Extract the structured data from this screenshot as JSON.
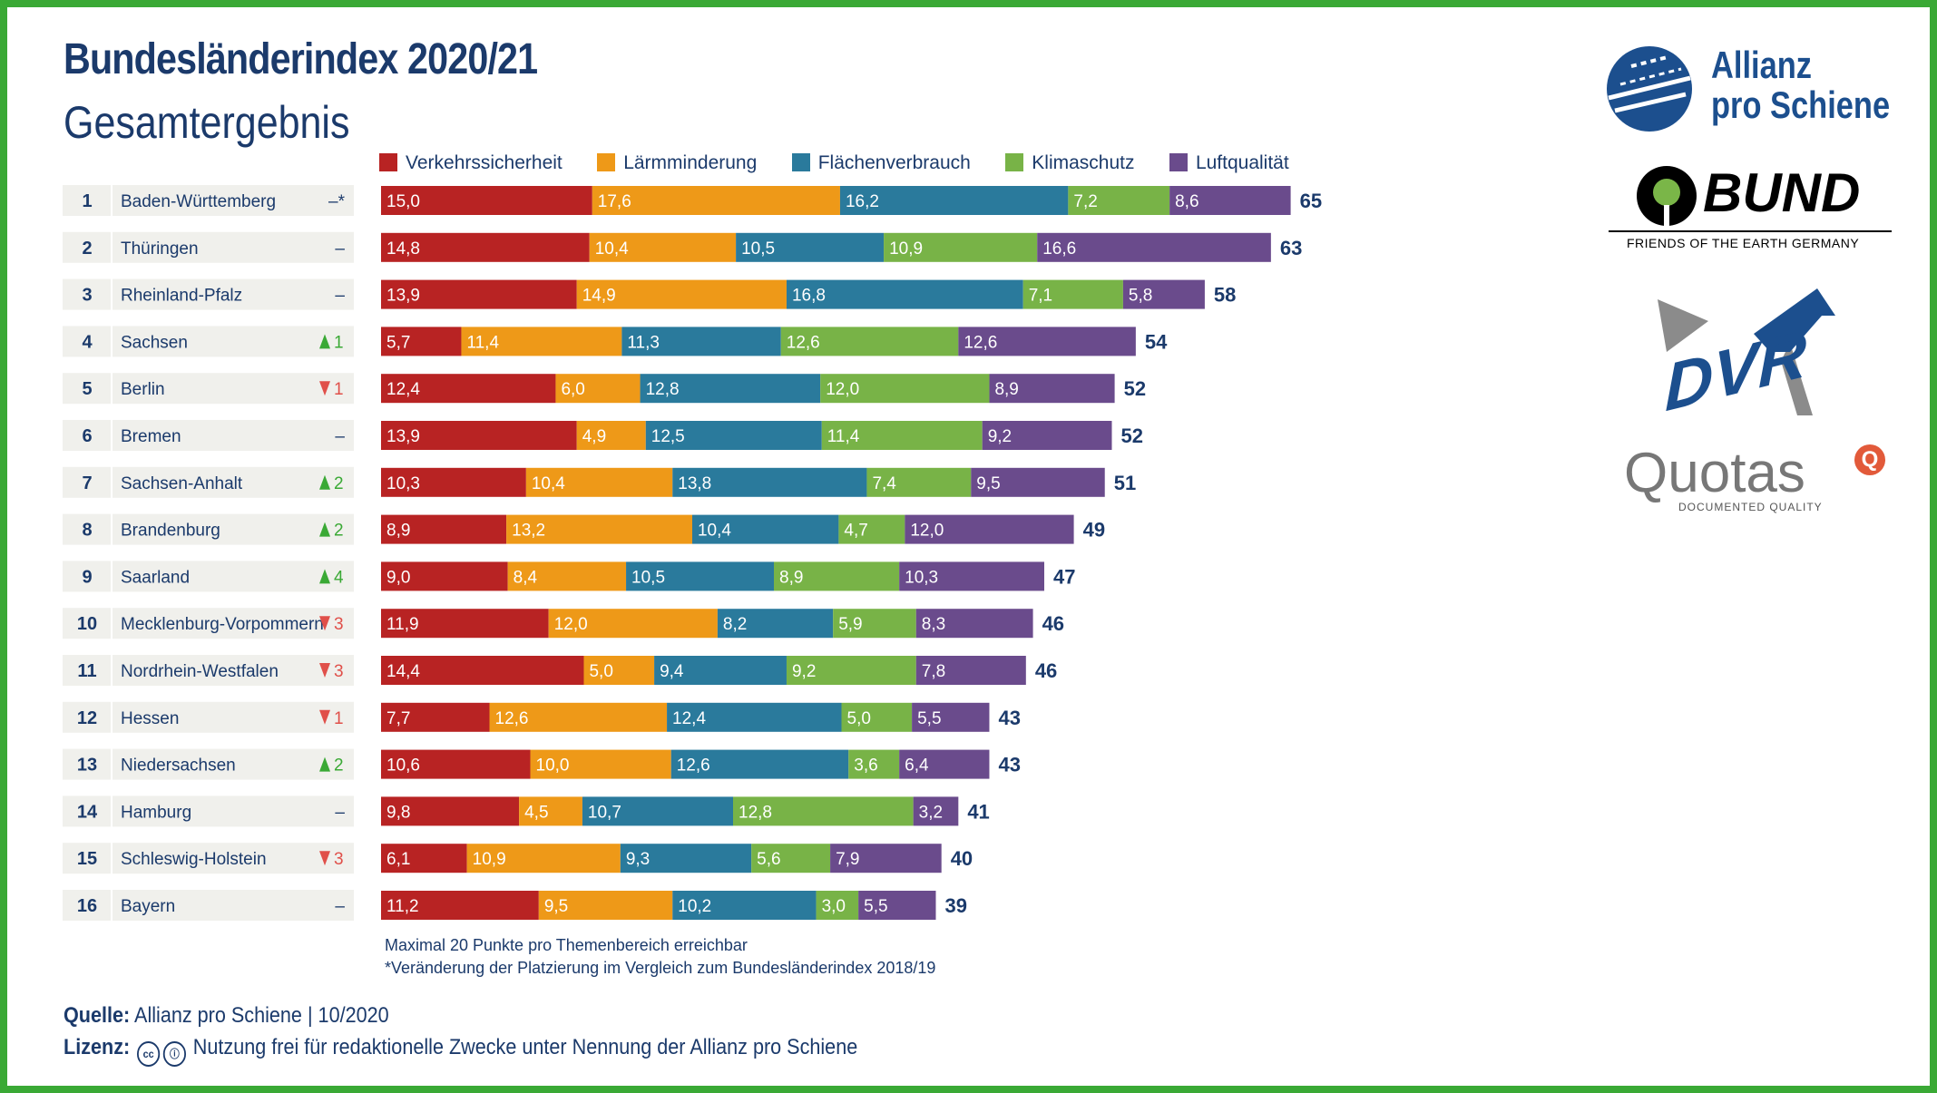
{
  "header": {
    "title": "Bundesländerindex 2020/21",
    "subtitle": "Gesamtergebnis"
  },
  "colors": {
    "verkehrssicherheit": "#b82323",
    "laerm": "#ee9918",
    "flaeche": "#2a7a9c",
    "klima": "#78b347",
    "luft": "#6a4b8c",
    "navy": "#1b3a6b",
    "up": "#3aa935",
    "down": "#e0504a",
    "frame": "#3aa935"
  },
  "chart_data": {
    "type": "bar",
    "stacked": true,
    "orientation": "horizontal",
    "xlim": [
      0,
      100
    ],
    "series_names": [
      "Verkehrssicherheit",
      "Lärmminderung",
      "Flächenverbrauch",
      "Klimaschutz",
      "Luftqualität"
    ],
    "rows": [
      {
        "rank": "1",
        "state": "Baden-Württemberg",
        "change": "–*",
        "dir": "none",
        "values": [
          15.0,
          17.6,
          16.2,
          7.2,
          8.6
        ],
        "labels": [
          "15,0",
          "17,6",
          "16,2",
          "7,2",
          "8,6"
        ],
        "total": "65"
      },
      {
        "rank": "2",
        "state": "Thüringen",
        "change": "–",
        "dir": "none",
        "values": [
          14.8,
          10.4,
          10.5,
          10.9,
          16.6
        ],
        "labels": [
          "14,8",
          "10,4",
          "10,5",
          "10,9",
          "16,6"
        ],
        "total": "63"
      },
      {
        "rank": "3",
        "state": "Rheinland-Pfalz",
        "change": "–",
        "dir": "none",
        "values": [
          13.9,
          14.9,
          16.8,
          7.1,
          5.8
        ],
        "labels": [
          "13,9",
          "14,9",
          "16,8",
          "7,1",
          "5,8"
        ],
        "total": "58"
      },
      {
        "rank": "4",
        "state": "Sachsen",
        "change": "1",
        "dir": "up",
        "values": [
          5.7,
          11.4,
          11.3,
          12.6,
          12.6
        ],
        "labels": [
          "5,7",
          "11,4",
          "11,3",
          "12,6",
          "12,6"
        ],
        "total": "54"
      },
      {
        "rank": "5",
        "state": "Berlin",
        "change": "1",
        "dir": "down",
        "values": [
          12.4,
          6.0,
          12.8,
          12.0,
          8.9
        ],
        "labels": [
          "12,4",
          "6,0",
          "12,8",
          "12,0",
          "8,9"
        ],
        "total": "52"
      },
      {
        "rank": "6",
        "state": "Bremen",
        "change": "–",
        "dir": "none",
        "values": [
          13.9,
          4.9,
          12.5,
          11.4,
          9.2
        ],
        "labels": [
          "13,9",
          "4,9",
          "12,5",
          "11,4",
          "9,2"
        ],
        "total": "52"
      },
      {
        "rank": "7",
        "state": "Sachsen-Anhalt",
        "change": "2",
        "dir": "up",
        "values": [
          10.3,
          10.4,
          13.8,
          7.4,
          9.5
        ],
        "labels": [
          "10,3",
          "10,4",
          "13,8",
          "7,4",
          "9,5"
        ],
        "total": "51"
      },
      {
        "rank": "8",
        "state": "Brandenburg",
        "change": "2",
        "dir": "up",
        "values": [
          8.9,
          13.2,
          10.4,
          4.7,
          12.0
        ],
        "labels": [
          "8,9",
          "13,2",
          "10,4",
          "4,7",
          "12,0"
        ],
        "total": "49"
      },
      {
        "rank": "9",
        "state": "Saarland",
        "change": "4",
        "dir": "up",
        "values": [
          9.0,
          8.4,
          10.5,
          8.9,
          10.3
        ],
        "labels": [
          "9,0",
          "8,4",
          "10,5",
          "8,9",
          "10,3"
        ],
        "total": "47"
      },
      {
        "rank": "10",
        "state": "Mecklenburg-Vorpommern",
        "change": "3",
        "dir": "down",
        "values": [
          11.9,
          12.0,
          8.2,
          5.9,
          8.3
        ],
        "labels": [
          "11,9",
          "12,0",
          "8,2",
          "5,9",
          "8,3"
        ],
        "total": "46"
      },
      {
        "rank": "11",
        "state": "Nordrhein-Westfalen",
        "change": "3",
        "dir": "down",
        "values": [
          14.4,
          5.0,
          9.4,
          9.2,
          7.8
        ],
        "labels": [
          "14,4",
          "5,0",
          "9,4",
          "9,2",
          "7,8"
        ],
        "total": "46"
      },
      {
        "rank": "12",
        "state": "Hessen",
        "change": "1",
        "dir": "down",
        "values": [
          7.7,
          12.6,
          12.4,
          5.0,
          5.5
        ],
        "labels": [
          "7,7",
          "12,6",
          "12,4",
          "5,0",
          "5,5"
        ],
        "total": "43"
      },
      {
        "rank": "13",
        "state": "Niedersachsen",
        "change": "2",
        "dir": "up",
        "values": [
          10.6,
          10.0,
          12.6,
          3.6,
          6.4
        ],
        "labels": [
          "10,6",
          "10,0",
          "12,6",
          "3,6",
          "6,4"
        ],
        "total": "43"
      },
      {
        "rank": "14",
        "state": "Hamburg",
        "change": "–",
        "dir": "none",
        "values": [
          9.8,
          4.5,
          10.7,
          12.8,
          3.2
        ],
        "labels": [
          "9,8",
          "4,5",
          "10,7",
          "12,8",
          "3,2"
        ],
        "total": "41"
      },
      {
        "rank": "15",
        "state": "Schleswig-Holstein",
        "change": "3",
        "dir": "down",
        "values": [
          6.1,
          10.9,
          9.3,
          5.6,
          7.9
        ],
        "labels": [
          "6,1",
          "10,9",
          "9,3",
          "5,6",
          "7,9"
        ],
        "total": "40"
      },
      {
        "rank": "16",
        "state": "Bayern",
        "change": "–",
        "dir": "none",
        "values": [
          11.2,
          9.5,
          10.2,
          3.0,
          5.5
        ],
        "labels": [
          "11,2",
          "9,5",
          "10,2",
          "3,0",
          "5,5"
        ],
        "total": "39"
      }
    ]
  },
  "notes": {
    "max_points": "Maximal 20 Punkte pro Themenbereich erreichbar",
    "change_note": "*Veränderung der Platzierung im Vergleich zum Bundesländerindex 2018/19"
  },
  "footer": {
    "source_label": "Quelle:",
    "source_text": "Allianz pro Schiene | 10/2020",
    "license_label": "Lizenz:",
    "license_text": "Nutzung frei für redaktionelle Zwecke unter Nennung der Allianz pro Schiene"
  },
  "logos": {
    "allianz": {
      "line1": "Allianz",
      "line2": "pro Schiene"
    },
    "bund": {
      "name": "BUND",
      "tagline": "FRIENDS OF THE EARTH GERMANY"
    },
    "dvr": {
      "name": "DVR"
    },
    "quotas": {
      "name": "Quotas",
      "tagline": "DOCUMENTED QUALITY"
    }
  }
}
